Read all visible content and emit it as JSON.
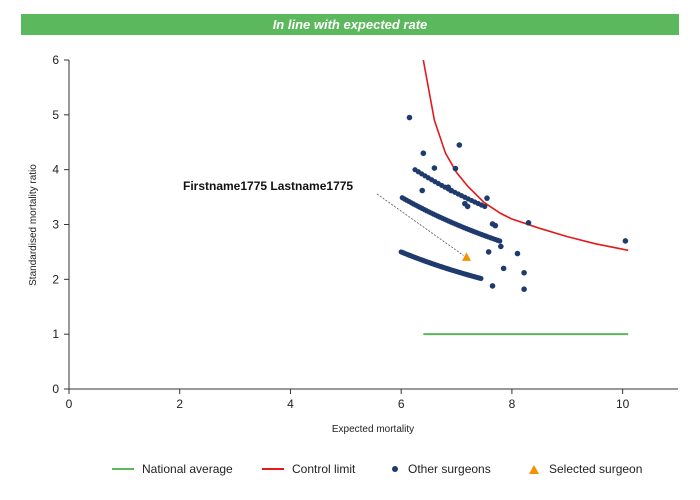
{
  "banner": {
    "text": "In line with expected rate",
    "color": "#5cb85c"
  },
  "chart_data": {
    "type": "scatter",
    "title": "",
    "xlabel": "Expected mortality",
    "ylabel": "Standardised mortality ratio",
    "xlim": [
      0,
      11
    ],
    "ylim": [
      0,
      6
    ],
    "xticks": [
      0,
      2,
      4,
      6,
      8,
      10
    ],
    "yticks": [
      0,
      1,
      2,
      3,
      4,
      5,
      6
    ],
    "grid": false,
    "legend_position": "bottom",
    "colors": {
      "national_average": "#5cb85c",
      "control_limit": "#e31a1c",
      "other_surgeons": "#1f3b6e",
      "selected_surgeon": "#f39200"
    },
    "national_average": {
      "name": "National average",
      "x_range": [
        6.4,
        10.1
      ],
      "y": 1.0
    },
    "control_limit": {
      "name": "Control limit",
      "points": [
        [
          6.4,
          6.0
        ],
        [
          6.6,
          4.9
        ],
        [
          6.8,
          4.3
        ],
        [
          7.0,
          3.95
        ],
        [
          7.2,
          3.7
        ],
        [
          7.5,
          3.4
        ],
        [
          7.8,
          3.2
        ],
        [
          8.0,
          3.1
        ],
        [
          8.5,
          2.93
        ],
        [
          9.0,
          2.78
        ],
        [
          9.5,
          2.65
        ],
        [
          10.1,
          2.53
        ]
      ]
    },
    "other_surgeons": {
      "name": "Other surgeons",
      "bands": [
        {
          "coef": 15.0,
          "x_start": 6.0,
          "x_end": 7.45,
          "step": 0.03
        },
        {
          "coef": 21.0,
          "x_start": 6.02,
          "x_end": 7.78,
          "step": 0.04
        },
        {
          "coef": 25.0,
          "x_start": 6.25,
          "x_end": 7.55,
          "step": 0.06
        }
      ],
      "scatter": [
        [
          6.15,
          4.95
        ],
        [
          6.4,
          4.3
        ],
        [
          7.05,
          4.45
        ],
        [
          6.6,
          4.03
        ],
        [
          6.98,
          4.02
        ],
        [
          6.38,
          3.62
        ],
        [
          6.85,
          3.68
        ],
        [
          6.9,
          3.62
        ],
        [
          7.15,
          3.38
        ],
        [
          7.2,
          3.33
        ],
        [
          7.55,
          3.48
        ],
        [
          7.65,
          3.01
        ],
        [
          7.7,
          2.98
        ],
        [
          8.3,
          3.03
        ],
        [
          7.8,
          2.6
        ],
        [
          7.58,
          2.5
        ],
        [
          8.1,
          2.47
        ],
        [
          7.85,
          2.2
        ],
        [
          8.22,
          2.12
        ],
        [
          7.65,
          1.88
        ],
        [
          8.22,
          1.82
        ],
        [
          10.05,
          2.7
        ]
      ]
    },
    "selected_surgeon": {
      "name": "Selected surgeon",
      "label": "Firstname1775 Lastname1775",
      "x": 7.18,
      "y": 2.4
    }
  }
}
